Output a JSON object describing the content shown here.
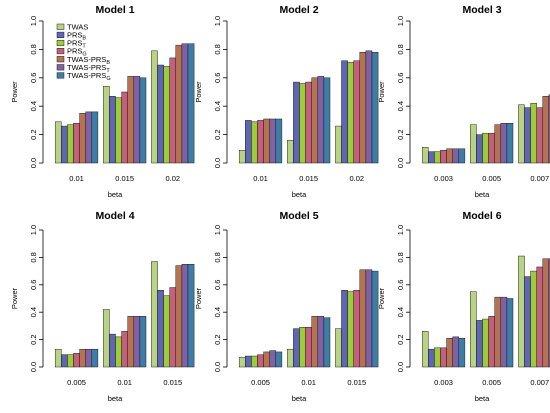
{
  "colors": [
    "#b8d483",
    "#5f66b4",
    "#9dcb3c",
    "#c45f7e",
    "#b57353",
    "#7d63a6",
    "#3e7ea6"
  ],
  "legend": [
    "TWAS",
    "PRS_B",
    "PRS_T",
    "PRS_G",
    "TWAS-PRS_B",
    "TWAS-PRS_T",
    "TWAS-PRS_G"
  ],
  "chart_data": [
    {
      "type": "bar",
      "title": "Model 1",
      "xlabel": "beta",
      "ylabel": "Power",
      "ylim": [
        0,
        1
      ],
      "yticks": [
        "0.0",
        "0.2",
        "0.4",
        "0.6",
        "0.8",
        "1.0"
      ],
      "categories": [
        "0.01",
        "0.015",
        "0.02"
      ],
      "series": [
        {
          "name": "TWAS",
          "values": [
            0.29,
            0.54,
            0.79
          ]
        },
        {
          "name": "PRS_B",
          "values": [
            0.26,
            0.47,
            0.69
          ]
        },
        {
          "name": "PRS_T",
          "values": [
            0.27,
            0.46,
            0.68
          ]
        },
        {
          "name": "PRS_G",
          "values": [
            0.28,
            0.5,
            0.74
          ]
        },
        {
          "name": "TWAS-PRS_B",
          "values": [
            0.35,
            0.61,
            0.83
          ]
        },
        {
          "name": "TWAS-PRS_T",
          "values": [
            0.36,
            0.61,
            0.84
          ]
        },
        {
          "name": "TWAS-PRS_G",
          "values": [
            0.36,
            0.6,
            0.84
          ]
        }
      ]
    },
    {
      "type": "bar",
      "title": "Model 2",
      "xlabel": "beta",
      "ylabel": "Power",
      "ylim": [
        0,
        1
      ],
      "yticks": [
        "0.0",
        "0.2",
        "0.4",
        "0.6",
        "0.8",
        "1.0"
      ],
      "categories": [
        "0.01",
        "0.015",
        "0.02"
      ],
      "series": [
        {
          "name": "TWAS",
          "values": [
            0.09,
            0.16,
            0.26
          ]
        },
        {
          "name": "PRS_B",
          "values": [
            0.3,
            0.57,
            0.72
          ]
        },
        {
          "name": "PRS_T",
          "values": [
            0.29,
            0.56,
            0.71
          ]
        },
        {
          "name": "PRS_G",
          "values": [
            0.3,
            0.57,
            0.72
          ]
        },
        {
          "name": "TWAS-PRS_B",
          "values": [
            0.31,
            0.6,
            0.78
          ]
        },
        {
          "name": "TWAS-PRS_T",
          "values": [
            0.31,
            0.61,
            0.79
          ]
        },
        {
          "name": "TWAS-PRS_G",
          "values": [
            0.31,
            0.6,
            0.78
          ]
        }
      ]
    },
    {
      "type": "bar",
      "title": "Model 3",
      "xlabel": "beta",
      "ylabel": "Power",
      "ylim": [
        0,
        1
      ],
      "yticks": [
        "0.0",
        "0.2",
        "0.4",
        "0.6",
        "0.8",
        "1.0"
      ],
      "categories": [
        "0.003",
        "0.005",
        "0.007"
      ],
      "series": [
        {
          "name": "TWAS",
          "values": [
            0.11,
            0.27,
            0.41
          ]
        },
        {
          "name": "PRS_B",
          "values": [
            0.08,
            0.2,
            0.39
          ]
        },
        {
          "name": "PRS_T",
          "values": [
            0.08,
            0.21,
            0.42
          ]
        },
        {
          "name": "PRS_G",
          "values": [
            0.09,
            0.21,
            0.39
          ]
        },
        {
          "name": "TWAS-PRS_B",
          "values": [
            0.1,
            0.27,
            0.47
          ]
        },
        {
          "name": "TWAS-PRS_T",
          "values": [
            0.1,
            0.28,
            0.48
          ]
        },
        {
          "name": "TWAS-PRS_G",
          "values": [
            0.1,
            0.28,
            0.47
          ]
        }
      ]
    },
    {
      "type": "bar",
      "title": "Model 4",
      "xlabel": "beta",
      "ylabel": "Power",
      "ylim": [
        0,
        1
      ],
      "yticks": [
        "0.0",
        "0.2",
        "0.4",
        "0.6",
        "0.8",
        "1.0"
      ],
      "categories": [
        "0.005",
        "0.01",
        "0.015"
      ],
      "series": [
        {
          "name": "TWAS",
          "values": [
            0.13,
            0.42,
            0.77
          ]
        },
        {
          "name": "PRS_B",
          "values": [
            0.09,
            0.24,
            0.56
          ]
        },
        {
          "name": "PRS_T",
          "values": [
            0.09,
            0.22,
            0.52
          ]
        },
        {
          "name": "PRS_G",
          "values": [
            0.1,
            0.26,
            0.58
          ]
        },
        {
          "name": "TWAS-PRS_B",
          "values": [
            0.13,
            0.37,
            0.74
          ]
        },
        {
          "name": "TWAS-PRS_T",
          "values": [
            0.13,
            0.37,
            0.75
          ]
        },
        {
          "name": "TWAS-PRS_G",
          "values": [
            0.13,
            0.37,
            0.75
          ]
        }
      ]
    },
    {
      "type": "bar",
      "title": "Model 5",
      "xlabel": "beta",
      "ylabel": "Power",
      "ylim": [
        0,
        1
      ],
      "yticks": [
        "0.0",
        "0.2",
        "0.4",
        "0.6",
        "0.8",
        "1.0"
      ],
      "categories": [
        "0.005",
        "0.01",
        "0.015"
      ],
      "series": [
        {
          "name": "TWAS",
          "values": [
            0.07,
            0.13,
            0.28
          ]
        },
        {
          "name": "PRS_B",
          "values": [
            0.08,
            0.28,
            0.56
          ]
        },
        {
          "name": "PRS_T",
          "values": [
            0.08,
            0.29,
            0.55
          ]
        },
        {
          "name": "PRS_G",
          "values": [
            0.09,
            0.29,
            0.56
          ]
        },
        {
          "name": "TWAS-PRS_B",
          "values": [
            0.11,
            0.37,
            0.71
          ]
        },
        {
          "name": "TWAS-PRS_T",
          "values": [
            0.12,
            0.37,
            0.71
          ]
        },
        {
          "name": "TWAS-PRS_G",
          "values": [
            0.11,
            0.36,
            0.7
          ]
        }
      ]
    },
    {
      "type": "bar",
      "title": "Model 6",
      "xlabel": "beta",
      "ylabel": "Power",
      "ylim": [
        0,
        1
      ],
      "yticks": [
        "0.0",
        "0.2",
        "0.4",
        "0.6",
        "0.8",
        "1.0"
      ],
      "categories": [
        "0.003",
        "0.005",
        "0.007"
      ],
      "series": [
        {
          "name": "TWAS",
          "values": [
            0.26,
            0.55,
            0.81
          ]
        },
        {
          "name": "PRS_B",
          "values": [
            0.13,
            0.34,
            0.66
          ]
        },
        {
          "name": "PRS_T",
          "values": [
            0.14,
            0.35,
            0.7
          ]
        },
        {
          "name": "PRS_G",
          "values": [
            0.14,
            0.37,
            0.73
          ]
        },
        {
          "name": "TWAS-PRS_B",
          "values": [
            0.21,
            0.51,
            0.79
          ]
        },
        {
          "name": "TWAS-PRS_T",
          "values": [
            0.22,
            0.51,
            0.79
          ]
        },
        {
          "name": "TWAS-PRS_G",
          "values": [
            0.21,
            0.5,
            0.8
          ]
        }
      ]
    }
  ]
}
